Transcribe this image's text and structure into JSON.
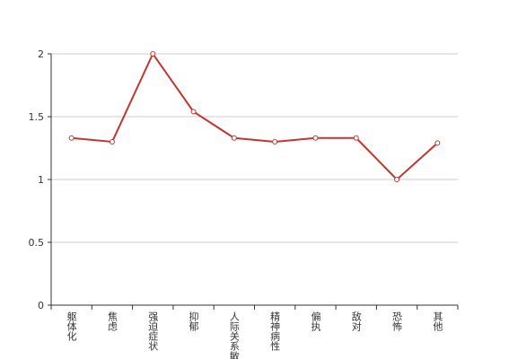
{
  "chart_data": {
    "type": "line",
    "categories": [
      "躯体化",
      "焦虑",
      "强迫症状",
      "抑郁",
      "人际关系敏感",
      "精神病性",
      "偏执",
      "敌对",
      "恐怖",
      "其他"
    ],
    "series": [
      {
        "color": "#c23531",
        "values": [
          1.33,
          1.3,
          2.0,
          1.54,
          1.33,
          1.3,
          1.33,
          1.33,
          1.0,
          1.29
        ]
      }
    ],
    "ylim": [
      0,
      2
    ],
    "yticks": [
      0,
      0.5,
      1,
      1.5,
      2
    ],
    "grid": true
  }
}
